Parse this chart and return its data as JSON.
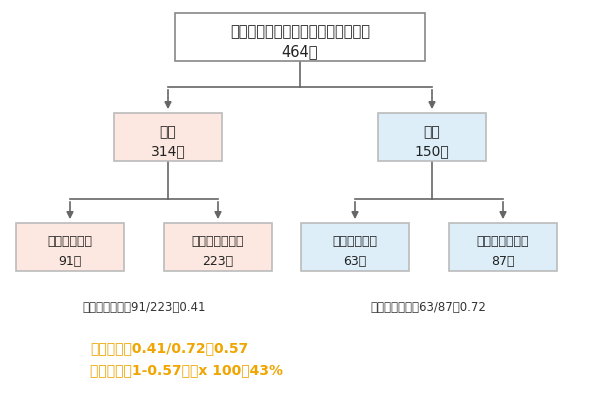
{
  "title_line1": "インフルエンザ様疾患による受診者",
  "title_line2": "464例",
  "node_positive_line1": "陽性",
  "node_positive_line2": "314例",
  "node_negative_line1": "陰性",
  "node_negative_line2": "150例",
  "node_vac_pos_line1": "ワクチン接種",
  "node_vac_pos_line2": "91例",
  "node_unvac_pos_line1": "ワクチン未接種",
  "node_unvac_pos_line2": "223例",
  "node_vac_neg_line1": "ワクチン接種",
  "node_vac_neg_line2": "63例",
  "node_unvac_neg_line1": "ワクチン未接種",
  "node_unvac_neg_line2": "87例",
  "odds_left": "接種のオッズ：91/223＝0.41",
  "odds_right": "接種のオッズ：63/87＝0.72",
  "formula_line1": "オッズ比：0.41/0.72＝0.57",
  "formula_line2": "有効率；（1-0.57）　x 100＝43%",
  "bg_color": "#ffffff",
  "root_box_color": "#ffffff",
  "root_box_edge": "#888888",
  "positive_box_color": "#fce8e0",
  "positive_box_edge": "#bbbbbb",
  "negative_box_color": "#ddeef8",
  "negative_box_edge": "#bbbbbb",
  "vac_pos_box_color": "#fce8e0",
  "vac_pos_box_edge": "#bbbbbb",
  "unvac_pos_box_color": "#fce8e0",
  "unvac_pos_box_edge": "#bbbbbb",
  "vac_neg_box_color": "#ddeef8",
  "vac_neg_box_edge": "#bbbbbb",
  "unvac_neg_box_color": "#ddeef8",
  "unvac_neg_box_edge": "#bbbbbb",
  "arrow_color": "#666666",
  "text_color": "#222222",
  "formula_color": "#f0a500",
  "odds_color": "#333333",
  "font_size_main": 10.5,
  "font_size_node": 10,
  "font_size_leaf": 9,
  "font_size_odds": 8.5,
  "font_size_formula": 10
}
